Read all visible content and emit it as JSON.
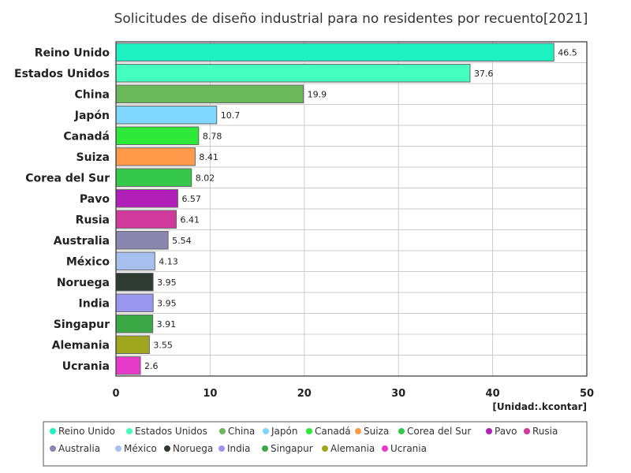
{
  "chart_data": {
    "type": "bar",
    "orientation": "horizontal",
    "title": "Solicitudes de diseño industrial para no residentes por recuento[2021]",
    "unit_label": "[Unidad:.kcontar]",
    "xlim": [
      0,
      50
    ],
    "x_ticks": [
      0,
      10,
      20,
      30,
      40,
      50
    ],
    "grid": true,
    "legend_position": "bottom",
    "categories": [
      "Reino Unido",
      "Estados Unidos",
      "China",
      "Japón",
      "Canadá",
      "Suiza",
      "Corea del Sur",
      "Pavo",
      "Rusia",
      "Australia",
      "México",
      "Noruega",
      "India",
      "Singapur",
      "Alemania",
      "Ucrania"
    ],
    "values": [
      46.5,
      37.6,
      19.9,
      10.7,
      8.78,
      8.41,
      8.02,
      6.57,
      6.41,
      5.54,
      4.13,
      3.95,
      3.95,
      3.91,
      3.55,
      2.6
    ],
    "value_labels": [
      "46.5",
      "37.6",
      "19.9",
      "10.7",
      "8.78",
      "8.41",
      "8.02",
      "6.57",
      "6.41",
      "5.54",
      "4.13",
      "3.95",
      "3.95",
      "3.91",
      "3.55",
      "2.6"
    ],
    "colors": [
      "#1ef2c3",
      "#44ffc0",
      "#6ab85a",
      "#7fd6ff",
      "#2ee83a",
      "#ff9a4a",
      "#36c84a",
      "#b21eb8",
      "#d03a9a",
      "#8a86b0",
      "#a8c0ee",
      "#2e3a32",
      "#9a96ee",
      "#3aa844",
      "#9ea61e",
      "#e83ac8"
    ]
  }
}
